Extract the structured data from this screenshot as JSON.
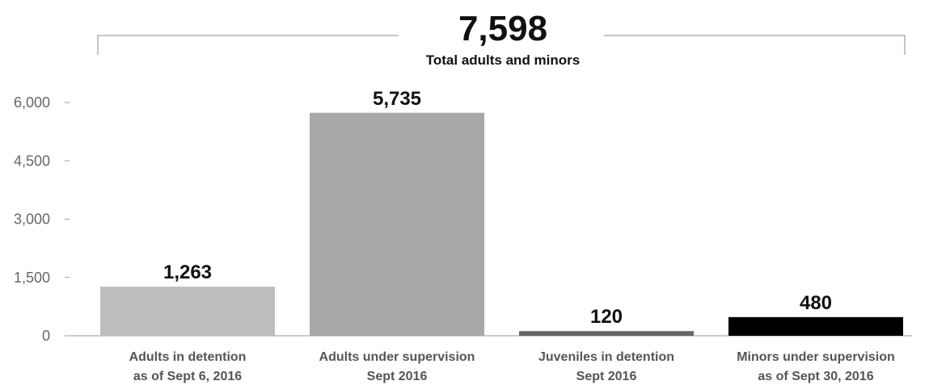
{
  "chart_data": {
    "type": "bar",
    "categories": [
      [
        "Adults in detention",
        "as of Sept 6, 2016"
      ],
      [
        "Adults under supervision",
        "Sept 2016"
      ],
      [
        "Juveniles in detention",
        "Sept 2016"
      ],
      [
        "Minors under supervision",
        "as of Sept 30, 2016"
      ]
    ],
    "values": [
      1263,
      5735,
      120,
      480
    ],
    "value_labels": [
      "1,263",
      "5,735",
      "120",
      "480"
    ],
    "bar_colors": [
      "#bcbdbf",
      "#a7a9a8",
      "#666666",
      "#000000"
    ],
    "ylim": [
      0,
      6000
    ],
    "yticks": [
      0,
      1500,
      3000,
      4500,
      6000
    ],
    "ytick_labels": [
      "0",
      "1,500",
      "3,000",
      "4,500",
      "6,000"
    ],
    "grid": false,
    "legend": "none",
    "total": {
      "value_label": "7,598",
      "label": "Total adults and minors"
    },
    "title": "",
    "xlabel": "",
    "ylabel": ""
  }
}
